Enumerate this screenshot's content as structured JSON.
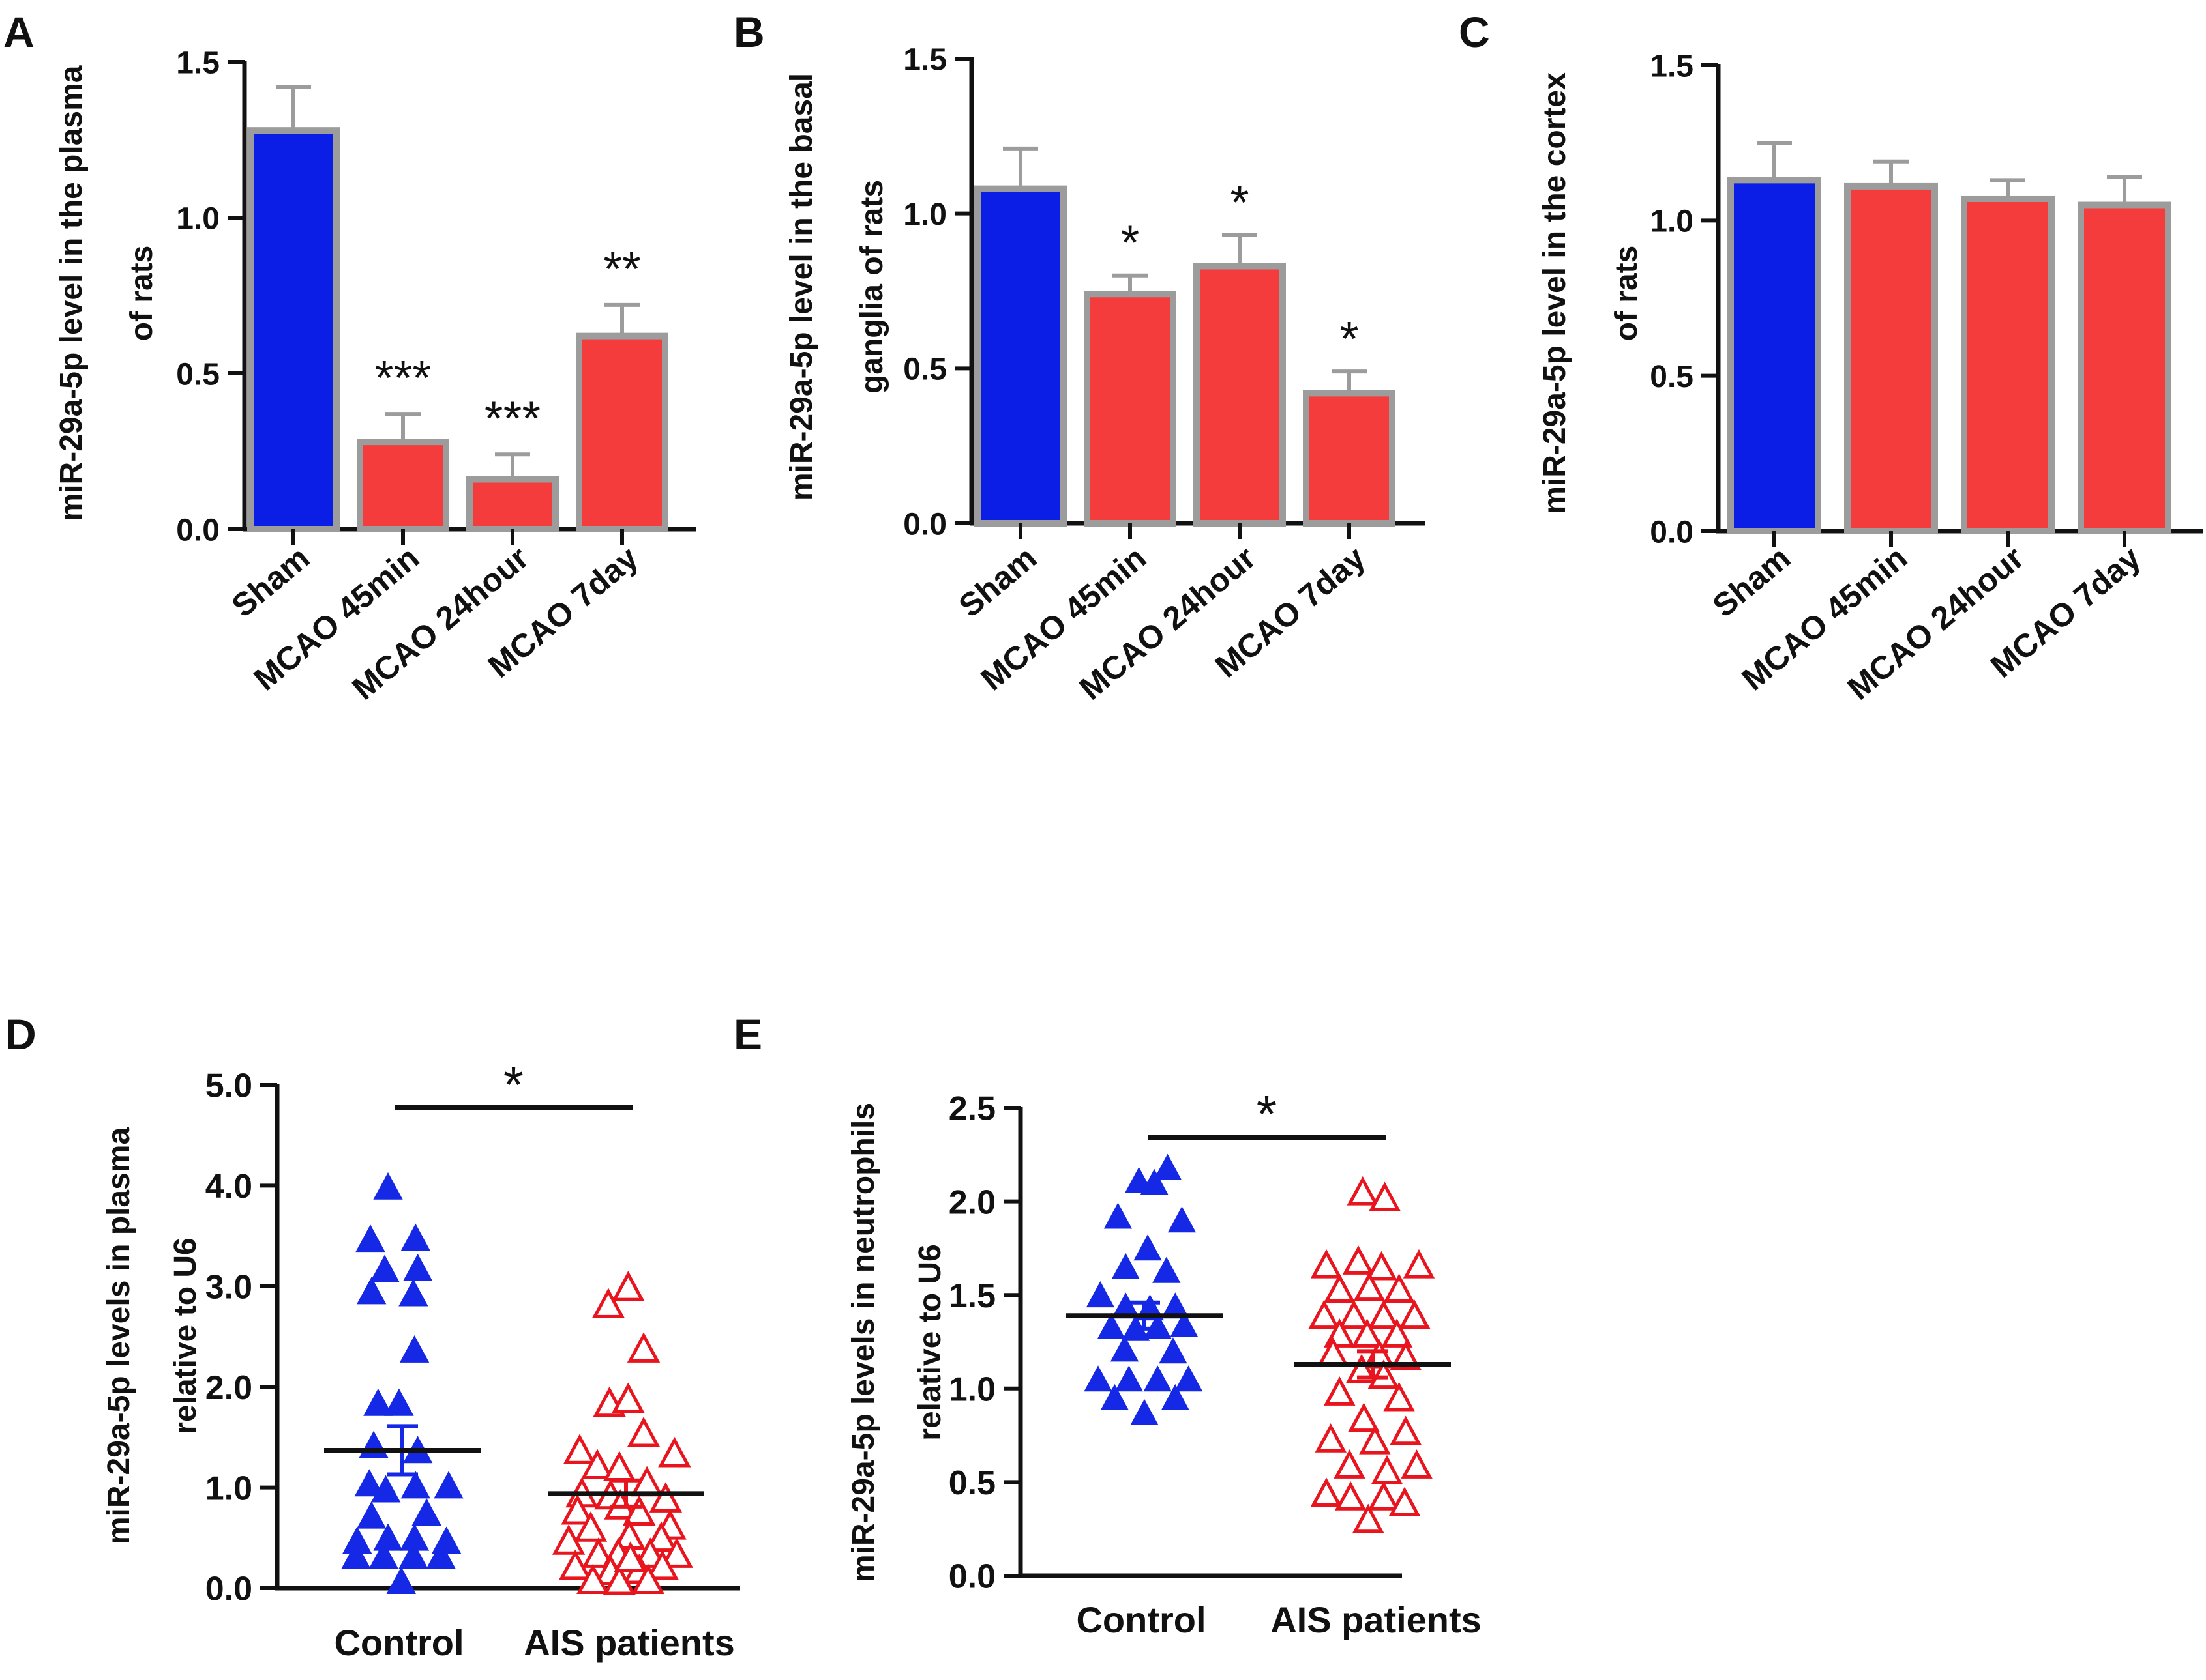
{
  "colors": {
    "sham": "#0a1ee6",
    "mcao": "#f43c3c",
    "bar_edge": "#9c9c9c",
    "control": "#1428e6",
    "ais": "#e8141e",
    "axis": "#111111"
  },
  "chart_data": [
    {
      "id": "A",
      "panel_label": "A",
      "type": "bar",
      "ylabel_lines": [
        "miR-29a-5p level in the plasma",
        "of rats"
      ],
      "categories": [
        "Sham",
        "MCAO 45min",
        "MCAO 24hour",
        "MCAO 7day"
      ],
      "values": [
        1.28,
        0.28,
        0.16,
        0.62
      ],
      "errors": [
        0.14,
        0.09,
        0.08,
        0.1
      ],
      "significance": [
        "",
        "***",
        "***",
        "**"
      ],
      "bar_colors": [
        "sham",
        "mcao",
        "mcao",
        "mcao"
      ],
      "ylim": [
        0,
        1.5
      ],
      "ticks": [
        "0.0",
        "0.5",
        "1.0",
        "1.5"
      ],
      "tick_values": [
        0,
        0.5,
        1.0,
        1.5
      ]
    },
    {
      "id": "B",
      "panel_label": "B",
      "type": "bar",
      "ylabel_lines": [
        "miR-29a-5p level in the basal",
        "ganglia of  rats"
      ],
      "categories": [
        "Sham",
        "MCAO 45min",
        "MCAO 24hour",
        "MCAO 7day"
      ],
      "values": [
        1.08,
        0.74,
        0.83,
        0.42
      ],
      "errors": [
        0.13,
        0.06,
        0.1,
        0.07
      ],
      "significance": [
        "",
        "*",
        "*",
        "*"
      ],
      "bar_colors": [
        "sham",
        "mcao",
        "mcao",
        "mcao"
      ],
      "ylim": [
        0,
        1.5
      ],
      "ticks": [
        "0.0",
        "0.5",
        "1.0",
        "1.5"
      ],
      "tick_values": [
        0,
        0.5,
        1.0,
        1.5
      ]
    },
    {
      "id": "C",
      "panel_label": "C",
      "type": "bar",
      "ylabel_lines": [
        "miR-29a-5p level in the cortex",
        "of rats"
      ],
      "categories": [
        "Sham",
        "MCAO 45min",
        "MCAO 24hour",
        "MCAO 7day"
      ],
      "values": [
        1.13,
        1.11,
        1.07,
        1.05
      ],
      "errors": [
        0.12,
        0.08,
        0.06,
        0.09
      ],
      "significance": [
        "",
        "",
        "",
        ""
      ],
      "bar_colors": [
        "sham",
        "mcao",
        "mcao",
        "mcao"
      ],
      "ylim": [
        0,
        1.5
      ],
      "ticks": [
        "0.0",
        "0.5",
        "1.0",
        "1.5"
      ],
      "tick_values": [
        0,
        0.5,
        1.0,
        1.5
      ]
    },
    {
      "id": "D",
      "panel_label": "D",
      "type": "scatter",
      "ylabel_lines": [
        "miR-29a-5p levels in plasma",
        "relative to U6"
      ],
      "categories": [
        "Control",
        "AIS patients"
      ],
      "ylim": [
        0,
        5.0
      ],
      "ticks": [
        "0.0",
        "1.0",
        "2.0",
        "3.0",
        "4.0",
        "5.0"
      ],
      "tick_values": [
        0,
        1,
        2,
        3,
        4,
        5
      ],
      "significance": "*",
      "groups": [
        {
          "name": "Control",
          "marker": "filled-triangle",
          "color_key": "control",
          "mean": 1.37,
          "sem": 0.24,
          "points": [
            {
              "dx": -0.13,
              "y": 3.97
            },
            {
              "dx": -0.29,
              "y": 3.45
            },
            {
              "dx": 0.12,
              "y": 3.46
            },
            {
              "dx": -0.16,
              "y": 3.15
            },
            {
              "dx": 0.14,
              "y": 3.16
            },
            {
              "dx": -0.28,
              "y": 2.93
            },
            {
              "dx": 0.1,
              "y": 2.91
            },
            {
              "dx": 0.11,
              "y": 2.35
            },
            {
              "dx": -0.22,
              "y": 1.82
            },
            {
              "dx": -0.03,
              "y": 1.82
            },
            {
              "dx": -0.26,
              "y": 1.4
            },
            {
              "dx": 0.14,
              "y": 1.35
            },
            {
              "dx": -0.3,
              "y": 1.02
            },
            {
              "dx": -0.15,
              "y": 0.96
            },
            {
              "dx": 0.12,
              "y": 1.0
            },
            {
              "dx": 0.42,
              "y": 1.0
            },
            {
              "dx": -0.28,
              "y": 0.7
            },
            {
              "dx": 0.22,
              "y": 0.73
            },
            {
              "dx": -0.41,
              "y": 0.45
            },
            {
              "dx": -0.13,
              "y": 0.48
            },
            {
              "dx": 0.11,
              "y": 0.48
            },
            {
              "dx": 0.4,
              "y": 0.45
            },
            {
              "dx": -0.42,
              "y": 0.3
            },
            {
              "dx": -0.17,
              "y": 0.3
            },
            {
              "dx": 0.1,
              "y": 0.3
            },
            {
              "dx": 0.35,
              "y": 0.3
            },
            {
              "dx": -0.01,
              "y": 0.05
            }
          ]
        },
        {
          "name": "AIS patients",
          "marker": "open-triangle",
          "color_key": "ais",
          "mean": 0.94,
          "sem": 0.13,
          "points": [
            {
              "dx": 0.02,
              "y": 2.97
            },
            {
              "dx": -0.16,
              "y": 2.8
            },
            {
              "dx": 0.16,
              "y": 2.36
            },
            {
              "dx": -0.15,
              "y": 1.82
            },
            {
              "dx": 0.02,
              "y": 1.86
            },
            {
              "dx": 0.16,
              "y": 1.52
            },
            {
              "dx": -0.42,
              "y": 1.35
            },
            {
              "dx": 0.44,
              "y": 1.32
            },
            {
              "dx": -0.26,
              "y": 1.2
            },
            {
              "dx": -0.06,
              "y": 1.18
            },
            {
              "dx": 0.19,
              "y": 1.03
            },
            {
              "dx": -0.4,
              "y": 0.92
            },
            {
              "dx": -0.14,
              "y": 0.9
            },
            {
              "dx": 0.36,
              "y": 0.87
            },
            {
              "dx": -0.05,
              "y": 0.8
            },
            {
              "dx": -0.44,
              "y": 0.75
            },
            {
              "dx": 0.12,
              "y": 0.74
            },
            {
              "dx": 0.4,
              "y": 0.6
            },
            {
              "dx": -0.32,
              "y": 0.58
            },
            {
              "dx": -0.52,
              "y": 0.45
            },
            {
              "dx": 0.03,
              "y": 0.5
            },
            {
              "dx": 0.32,
              "y": 0.48
            },
            {
              "dx": -0.25,
              "y": 0.32
            },
            {
              "dx": -0.07,
              "y": 0.32
            },
            {
              "dx": 0.22,
              "y": 0.32
            },
            {
              "dx": 0.46,
              "y": 0.32
            },
            {
              "dx": -0.46,
              "y": 0.2
            },
            {
              "dx": -0.14,
              "y": 0.15
            },
            {
              "dx": 0.12,
              "y": 0.16
            },
            {
              "dx": 0.33,
              "y": 0.2
            },
            {
              "dx": -0.3,
              "y": 0.06
            },
            {
              "dx": -0.06,
              "y": 0.05
            },
            {
              "dx": 0.2,
              "y": 0.06
            },
            {
              "dx": 0.04,
              "y": 0.28
            }
          ]
        }
      ]
    },
    {
      "id": "E",
      "panel_label": "E",
      "type": "scatter",
      "ylabel_lines": [
        "miR-29a-5p levels in neutrophils",
        "relative to U6"
      ],
      "categories": [
        "Control",
        "AIS patients"
      ],
      "ylim": [
        0,
        2.5
      ],
      "ticks": [
        "0.0",
        "0.5",
        "1.0",
        "1.5",
        "2.0",
        "2.5"
      ],
      "tick_values": [
        0,
        0.5,
        1.0,
        1.5,
        2.0,
        2.5
      ],
      "significance": "*",
      "groups": [
        {
          "name": "Control",
          "marker": "filled-triangle",
          "color_key": "control",
          "mean": 1.39,
          "sem": 0.07,
          "points": [
            {
              "dx": 0.21,
              "y": 2.17
            },
            {
              "dx": -0.05,
              "y": 2.1
            },
            {
              "dx": 0.09,
              "y": 2.09
            },
            {
              "dx": -0.24,
              "y": 1.91
            },
            {
              "dx": 0.34,
              "y": 1.89
            },
            {
              "dx": 0.03,
              "y": 1.74
            },
            {
              "dx": -0.17,
              "y": 1.64
            },
            {
              "dx": 0.2,
              "y": 1.62
            },
            {
              "dx": -0.4,
              "y": 1.49
            },
            {
              "dx": -0.17,
              "y": 1.43
            },
            {
              "dx": 0.28,
              "y": 1.43
            },
            {
              "dx": 0.05,
              "y": 1.42
            },
            {
              "dx": -0.3,
              "y": 1.32
            },
            {
              "dx": 0.12,
              "y": 1.32
            },
            {
              "dx": 0.36,
              "y": 1.33
            },
            {
              "dx": -0.08,
              "y": 1.31
            },
            {
              "dx": -0.18,
              "y": 1.2
            },
            {
              "dx": 0.26,
              "y": 1.19
            },
            {
              "dx": -0.42,
              "y": 1.04
            },
            {
              "dx": -0.14,
              "y": 1.04
            },
            {
              "dx": 0.12,
              "y": 1.04
            },
            {
              "dx": 0.4,
              "y": 1.04
            },
            {
              "dx": -0.27,
              "y": 0.94
            },
            {
              "dx": 0.28,
              "y": 0.94
            },
            {
              "dx": 0.0,
              "y": 0.86
            }
          ]
        },
        {
          "name": "AIS patients",
          "marker": "open-triangle",
          "color_key": "ais",
          "mean": 1.13,
          "sem": 0.07,
          "points": [
            {
              "dx": -0.09,
              "y": 2.04
            },
            {
              "dx": 0.11,
              "y": 2.01
            },
            {
              "dx": -0.42,
              "y": 1.65
            },
            {
              "dx": -0.13,
              "y": 1.67
            },
            {
              "dx": 0.08,
              "y": 1.64
            },
            {
              "dx": 0.42,
              "y": 1.65
            },
            {
              "dx": -0.3,
              "y": 1.52
            },
            {
              "dx": -0.03,
              "y": 1.53
            },
            {
              "dx": 0.24,
              "y": 1.52
            },
            {
              "dx": -0.44,
              "y": 1.38
            },
            {
              "dx": -0.17,
              "y": 1.38
            },
            {
              "dx": 0.1,
              "y": 1.38
            },
            {
              "dx": 0.38,
              "y": 1.38
            },
            {
              "dx": -0.3,
              "y": 1.28
            },
            {
              "dx": -0.05,
              "y": 1.28
            },
            {
              "dx": 0.22,
              "y": 1.28
            },
            {
              "dx": -0.36,
              "y": 1.18
            },
            {
              "dx": 0.06,
              "y": 1.17
            },
            {
              "dx": 0.3,
              "y": 1.16
            },
            {
              "dx": -0.1,
              "y": 1.09
            },
            {
              "dx": 0.1,
              "y": 1.06
            },
            {
              "dx": -0.3,
              "y": 0.97
            },
            {
              "dx": 0.24,
              "y": 0.94
            },
            {
              "dx": -0.08,
              "y": 0.83
            },
            {
              "dx": 0.3,
              "y": 0.76
            },
            {
              "dx": -0.38,
              "y": 0.72
            },
            {
              "dx": 0.02,
              "y": 0.71
            },
            {
              "dx": -0.21,
              "y": 0.58
            },
            {
              "dx": 0.13,
              "y": 0.55
            },
            {
              "dx": 0.4,
              "y": 0.58
            },
            {
              "dx": -0.42,
              "y": 0.43
            },
            {
              "dx": -0.2,
              "y": 0.41
            },
            {
              "dx": 0.1,
              "y": 0.41
            },
            {
              "dx": 0.29,
              "y": 0.38
            },
            {
              "dx": -0.04,
              "y": 0.29
            }
          ]
        }
      ]
    }
  ]
}
